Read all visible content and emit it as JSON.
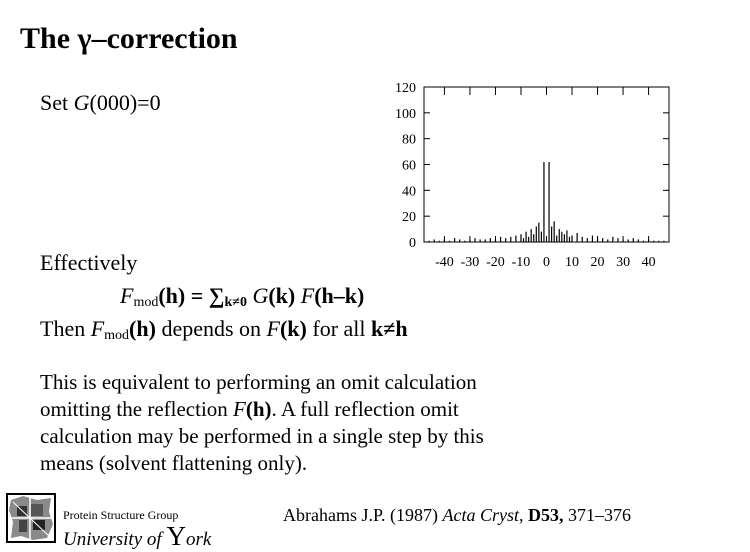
{
  "title": {
    "prefix": "The ",
    "gamma": "γ",
    "dash": "–",
    "rest": "correction"
  },
  "set_line": {
    "pre": "Set ",
    "G": "G",
    "rest": "(000)=0"
  },
  "effectively": "Effectively",
  "formula": {
    "F": "F",
    "sub": "mod",
    "h": "(h)",
    "eq": " = ",
    "sum": "∑",
    "sub2": "k≠0",
    "G": " G",
    "k": "(k) ",
    "F2": "F",
    "hk": "(h–k)"
  },
  "then_line": {
    "pre": "Then ",
    "F": "F",
    "sub": "mod",
    "h": "(h)",
    "mid": " depends on ",
    "F2": "F",
    "k": "(k)",
    "mid2": " for all ",
    "cond": "k≠h"
  },
  "paragraph": {
    "line1": "This is equivalent to performing an omit calculation",
    "line2_pre": "omitting the reflection ",
    "line2_F": "F",
    "line2_h": "(h)",
    "line2_post": ". A full reflection omit",
    "line3": "calculation may be performed in a single step by this",
    "line4": "means (solvent flattening only)."
  },
  "footer": {
    "org": "Protein Structure Group",
    "uni_pre": "University of ",
    "uni_Y": "Y",
    "uni_post": "ork",
    "citation": {
      "authors": "Abrahams J.P. (1987) ",
      "journal": "Acta Cryst,",
      "volume": " D53,",
      "pages": " 371–376"
    }
  },
  "chart_data": {
    "type": "bar",
    "x_ticks": [
      -40,
      -30,
      -20,
      -10,
      0,
      10,
      20,
      30,
      40
    ],
    "y_ticks": [
      0,
      20,
      40,
      60,
      80,
      100,
      120
    ],
    "xlim": [
      -48,
      48
    ],
    "ylim": [
      0,
      120
    ],
    "x": [
      -46,
      -44,
      -42,
      -40,
      -38,
      -36,
      -34,
      -32,
      -30,
      -28,
      -26,
      -24,
      -22,
      -20,
      -18,
      -16,
      -14,
      -12,
      -10,
      -9,
      -8,
      -7,
      -6,
      -5,
      -4,
      -3,
      -2,
      -1,
      1,
      2,
      3,
      4,
      5,
      6,
      7,
      8,
      9,
      10,
      12,
      14,
      16,
      18,
      20,
      22,
      24,
      26,
      28,
      30,
      32,
      34,
      36,
      38,
      40,
      42,
      44,
      46
    ],
    "values": [
      1,
      2,
      1,
      2,
      1,
      3,
      2,
      1,
      2,
      3,
      2,
      2,
      3,
      2,
      4,
      3,
      4,
      5,
      6,
      3,
      8,
      4,
      10,
      6,
      12,
      15,
      8,
      62,
      62,
      12,
      16,
      5,
      10,
      8,
      6,
      9,
      4,
      5,
      7,
      4,
      3,
      5,
      4,
      3,
      2,
      4,
      3,
      2,
      2,
      3,
      2,
      1,
      2,
      1,
      1,
      1
    ]
  }
}
